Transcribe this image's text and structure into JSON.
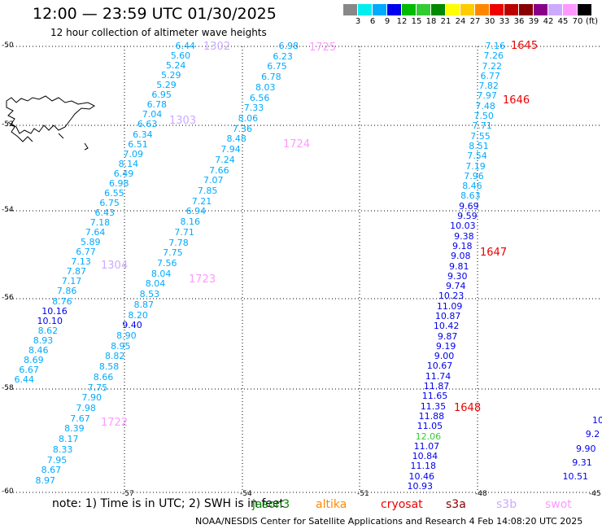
{
  "title": "12:00 — 23:59 UTC 01/30/2025",
  "subtitle": "12 hour collection of altimeter wave heights",
  "scale": {
    "labels": [
      "3",
      "6",
      "9",
      "12",
      "15",
      "18",
      "21",
      "24",
      "27",
      "30",
      "33",
      "36",
      "39",
      "42",
      "45",
      "70"
    ],
    "unit": "(ft)",
    "colors": [
      "#888888",
      "#00eeee",
      "#00aaff",
      "#0000ee",
      "#00bb00",
      "#33cc33",
      "#008800",
      "#ffff00",
      "#ffcc00",
      "#ff8800",
      "#ee0000",
      "#bb0000",
      "#880000",
      "#880088",
      "#ccaaff",
      "#ff99ff",
      "#000000"
    ]
  },
  "lat_labels": [
    "-50",
    "-52",
    "-54",
    "-56",
    "-58",
    "-60"
  ],
  "lon_labels": [
    "-57",
    "-54",
    "-51",
    "-48",
    "-45"
  ],
  "note": "note:  1) Time is in UTC; 2) SWH is in feet",
  "legend": [
    {
      "name": "jason3",
      "color": "#008800"
    },
    {
      "name": "altika",
      "color": "#ff8800"
    },
    {
      "name": "cryosat",
      "color": "#ee0000"
    },
    {
      "name": "s3a",
      "color": "#880000"
    },
    {
      "name": "s3b",
      "color": "#ccaaff"
    },
    {
      "name": "swot",
      "color": "#ff99ff"
    }
  ],
  "footer": "NOAA/NESDIS Center for Satellite Applications and Research    4 Feb 14:08:20 UTC 2025",
  "times": [
    {
      "t": "1302",
      "color": "#ccaaff"
    },
    {
      "t": "1303",
      "color": "#ccaaff"
    },
    {
      "t": "1304",
      "color": "#ccaaff"
    },
    {
      "t": "1725",
      "color": "#ff99ff"
    },
    {
      "t": "1724",
      "color": "#ff99ff"
    },
    {
      "t": "1723",
      "color": "#ff99ff"
    },
    {
      "t": "1722",
      "color": "#ff99ff"
    },
    {
      "t": "1645",
      "color": "#ee0000"
    },
    {
      "t": "1646",
      "color": "#ee0000"
    },
    {
      "t": "1647",
      "color": "#ee0000"
    },
    {
      "t": "1648",
      "color": "#ee0000"
    }
  ],
  "tracks": {
    "s3b": [
      "6.44",
      "5.60",
      "5.24",
      "5.29",
      "5.29",
      "6.95",
      "6.78",
      "7.04",
      "6.63",
      "6.34",
      "6.51",
      "7.09",
      "8.14",
      "6.49",
      "6.98",
      "6.55",
      "6.75",
      "6.43",
      "7.18",
      "7.64",
      "5.89",
      "6.77",
      "7.13",
      "7.87",
      "7.17",
      "7.86",
      "8.76",
      "10.16",
      "10.10",
      "8.62",
      "8.93",
      "8.46",
      "8.69",
      "6.67",
      "6.44"
    ],
    "swot": [
      "6.98",
      "6.23",
      "6.75",
      "6.78",
      "8.03",
      "6.56",
      "7.33",
      "8.06",
      "7.36",
      "8.48",
      "7.94",
      "7.24",
      "7.66",
      "7.07",
      "7.85",
      "7.21",
      "6.94",
      "8.16",
      "7.71",
      "7.78",
      "7.75",
      "7.56",
      "8.04",
      "8.04",
      "8.53",
      "8.87",
      "8.20",
      "9.40",
      "8.90",
      "8.95",
      "8.82",
      "8.58",
      "8.66",
      "7.75",
      "7.90",
      "7.98",
      "7.67",
      "8.39",
      "8.17",
      "8.33",
      "7.95",
      "8.67",
      "8.97"
    ],
    "cryosat": [
      "7.16",
      "7.26",
      "7.22",
      "6.77",
      "7.82",
      "7.97",
      "7.48",
      "7.50",
      "7.71",
      "7.55",
      "8.51",
      "7.54",
      "7.19",
      "7.96",
      "8.46",
      "8.63",
      "9.69",
      "9.59",
      "10.03",
      "9.38",
      "9.18",
      "9.08",
      "9.81",
      "9.30",
      "9.74",
      "10.23",
      "11.09",
      "10.87",
      "10.42",
      "9.87",
      "9.19",
      "9.00",
      "10.67",
      "11.74",
      "11.87",
      "11.65",
      "11.35",
      "11.88",
      "11.05",
      "12.06",
      "11.07",
      "10.84",
      "11.18",
      "10.46",
      "10.93"
    ],
    "edge": [
      "10",
      "9.2",
      "9.90",
      "9.31",
      "10.51"
    ]
  }
}
